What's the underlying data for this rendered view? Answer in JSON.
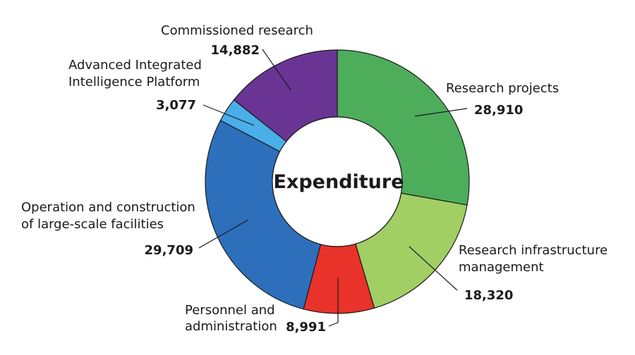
{
  "chart_data": {
    "type": "pie",
    "center_label": "Expenditure",
    "start": "12 o'clock, clockwise",
    "slices": [
      {
        "label": [
          "Research projects"
        ],
        "value": 28910,
        "value_text": "28,910",
        "color": "#4dad5b"
      },
      {
        "label": [
          "Research infrastructure",
          "management"
        ],
        "value": 18320,
        "value_text": "18,320",
        "color": "#a1cf64"
      },
      {
        "label": [
          "Personnel and",
          "administration"
        ],
        "value": 8991,
        "value_text": "8,991",
        "color": "#e8322a"
      },
      {
        "label": [
          "Operation and construction",
          "of large-scale facilities"
        ],
        "value": 29709,
        "value_text": "29,709",
        "color": "#2d6fbb"
      },
      {
        "label": [
          "Advanced Integrated",
          "Intelligence Platform"
        ],
        "value": 3077,
        "value_text": "3,077",
        "color": "#4aaee8"
      },
      {
        "label": [
          "Commissioned research"
        ],
        "value": 14882,
        "value_text": "14,882",
        "color": "#6a3494"
      }
    ]
  }
}
